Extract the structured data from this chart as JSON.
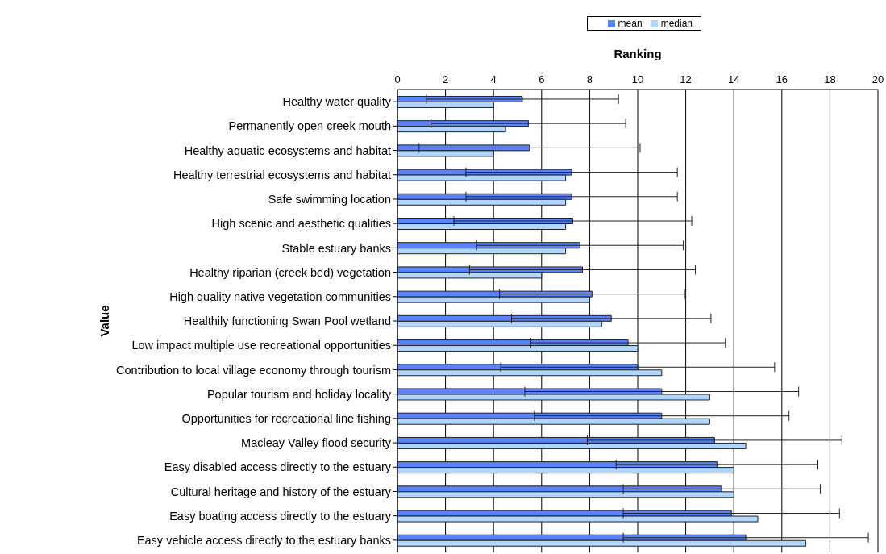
{
  "chart_data": {
    "type": "bar",
    "orientation": "horizontal",
    "xlabel": "Ranking",
    "ylabel": "Value",
    "categories": [
      "Healthy water quality",
      "Permanently open creek mouth",
      "Healthy aquatic ecosystems and habitat",
      "Healthy terrestrial ecosystems and habitat",
      "Safe swimming location",
      "High scenic and aesthetic qualities",
      "Stable estuary banks",
      "Healthy riparian (creek bed) vegetation",
      "High quality native vegetation communities",
      "Healthily functioning Swan Pool wetland",
      "Low impact multiple use recreational opportunities",
      "Contribution to local village economy through tourism",
      "Popular tourism and holiday locality",
      "Opportunities for recreational line fishing",
      "Macleay Valley flood security",
      "Easy disabled access directly to the estuary",
      "Cultural heritage and history of the estuary",
      "Easy boating access directly to the estuary",
      "Easy vehicle access directly to the estuary banks"
    ],
    "series": [
      {
        "name": "mean",
        "color": "#5a82fa",
        "values": [
          5.2,
          5.45,
          5.5,
          7.25,
          7.25,
          7.3,
          7.6,
          7.7,
          8.1,
          8.9,
          9.6,
          10,
          11,
          11,
          13.2,
          13.3,
          13.5,
          13.9,
          14.5
        ],
        "errors": [
          4,
          4.05,
          4.6,
          4.4,
          4.4,
          4.95,
          4.3,
          4.7,
          3.85,
          4.15,
          4.05,
          5.7,
          5.7,
          5.3,
          5.3,
          4.2,
          4.1,
          4.5,
          5.1
        ]
      },
      {
        "name": "median",
        "color": "#b0d6ff",
        "values": [
          4,
          4.5,
          4,
          7,
          7,
          7,
          7,
          6,
          8,
          8.5,
          10,
          11,
          13,
          13,
          14.5,
          14,
          14,
          15,
          17
        ]
      }
    ],
    "xlim": [
      0,
      20
    ],
    "xticks": [
      0,
      2,
      4,
      6,
      8,
      10,
      12,
      14,
      16,
      18,
      20
    ],
    "grid": "x",
    "legend": "top right"
  }
}
